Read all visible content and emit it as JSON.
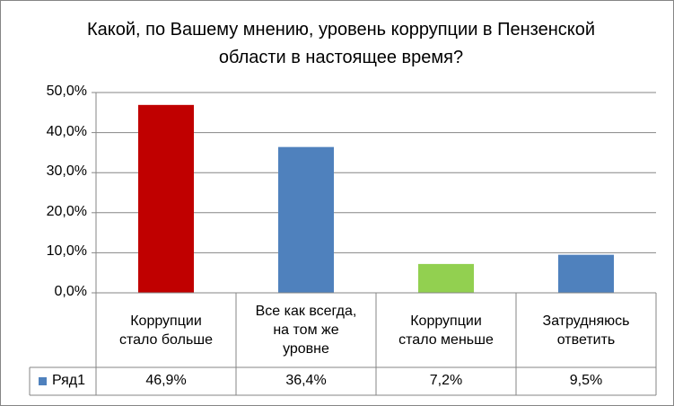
{
  "chart_data": {
    "type": "bar",
    "title": "Какой, по Вашему мнению, уровень коррупции в Пензенской области в настоящее время?",
    "categories": [
      "Коррупции стало больше",
      "Все как всегда, на том же уровне",
      "Коррупции стало меньше",
      "Затрудняюсь ответить"
    ],
    "category_lines": [
      [
        "Коррупции",
        "стало больше"
      ],
      [
        "Все как всегда,",
        "на том же",
        "уровне"
      ],
      [
        "Коррупции",
        "стало меньше"
      ],
      [
        "Затрудняюсь",
        "ответить"
      ]
    ],
    "series": [
      {
        "name": "Ряд1",
        "values": [
          46.9,
          36.4,
          7.2,
          9.5
        ]
      }
    ],
    "value_labels": [
      "46,9%",
      "36,4%",
      "7,2%",
      "9,5%"
    ],
    "bar_colors": [
      "#C00000",
      "#4F81BD",
      "#92D050",
      "#4F81BD"
    ],
    "legend_color": "#4F81BD",
    "ylim": [
      0,
      50
    ],
    "yticks": [
      0,
      10,
      20,
      30,
      40,
      50
    ],
    "ytick_labels": [
      "0,0%",
      "10,0%",
      "20,0%",
      "30,0%",
      "40,0%",
      "50,0%"
    ],
    "grid": true,
    "legend": "data-table"
  }
}
